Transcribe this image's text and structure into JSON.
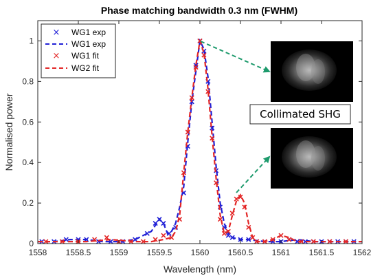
{
  "chart_data": {
    "type": "line",
    "title": "Phase matching bandwidth 0.3 nm (FWHM)",
    "xlabel": "Wavelength (nm)",
    "ylabel": "Normalised power",
    "xlim": [
      1558,
      1562
    ],
    "ylim": [
      0,
      1.1
    ],
    "xticks": [
      "1558",
      "1558.5",
      "1559",
      "1559.5",
      "1560",
      "1560.5",
      "1561",
      "1561.5",
      "1562"
    ],
    "yticks": [
      "0",
      "0.2",
      "0.4",
      "0.6",
      "0.8",
      "1"
    ],
    "grid": false,
    "legend_position": "top-left",
    "annotation_label": "Collimated SHG",
    "colors": {
      "blue": "#1f1fd6",
      "red": "#e32626",
      "arrow": "#1d9a6c"
    },
    "series": [
      {
        "name": "WG1 exp",
        "style": "markers",
        "marker": "x",
        "color": "#1f1fd6",
        "x": [
          1558.05,
          1558.2,
          1558.35,
          1558.5,
          1558.6,
          1558.75,
          1558.9,
          1559.05,
          1559.2,
          1559.35,
          1559.45,
          1559.5,
          1559.55,
          1559.62,
          1559.7,
          1559.8,
          1559.85,
          1559.9,
          1559.95,
          1560.0,
          1560.05,
          1560.1,
          1560.15,
          1560.2,
          1560.25,
          1560.3,
          1560.35,
          1560.4,
          1560.5,
          1560.6,
          1560.7,
          1560.8,
          1560.9,
          1561.0,
          1561.1,
          1561.2,
          1561.3,
          1561.4,
          1561.5,
          1561.6,
          1561.7,
          1561.8,
          1561.9
        ],
        "y": [
          0.01,
          0.01,
          0.02,
          0.02,
          0.02,
          0.01,
          0.01,
          0.01,
          0.02,
          0.05,
          0.1,
          0.12,
          0.1,
          0.05,
          0.08,
          0.25,
          0.48,
          0.7,
          0.88,
          1.0,
          0.95,
          0.8,
          0.57,
          0.36,
          0.18,
          0.08,
          0.04,
          0.03,
          0.02,
          0.02,
          0.01,
          0.01,
          0.01,
          0.01,
          0.02,
          0.01,
          0.01,
          0.01,
          0.01,
          0.01,
          0.01,
          0.01,
          0.01
        ]
      },
      {
        "name": "WG1 exp",
        "style": "dashed",
        "color": "#1f1fd6",
        "x": [
          1558.0,
          1558.2,
          1558.4,
          1558.6,
          1558.8,
          1559.0,
          1559.2,
          1559.3,
          1559.4,
          1559.5,
          1559.55,
          1559.6,
          1559.65,
          1559.7,
          1559.75,
          1559.8,
          1559.85,
          1559.9,
          1559.95,
          1560.0,
          1560.05,
          1560.1,
          1560.15,
          1560.2,
          1560.25,
          1560.3,
          1560.35,
          1560.4,
          1560.5,
          1560.6,
          1560.8,
          1561.0,
          1561.2,
          1561.4,
          1561.6,
          1561.8,
          1562.0
        ],
        "y": [
          0.01,
          0.01,
          0.02,
          0.02,
          0.01,
          0.01,
          0.02,
          0.04,
          0.06,
          0.12,
          0.1,
          0.05,
          0.06,
          0.1,
          0.18,
          0.28,
          0.5,
          0.7,
          0.85,
          1.0,
          0.96,
          0.82,
          0.6,
          0.38,
          0.2,
          0.1,
          0.05,
          0.03,
          0.02,
          0.02,
          0.01,
          0.01,
          0.02,
          0.01,
          0.01,
          0.01,
          0.01
        ]
      },
      {
        "name": "WG1 fit",
        "style": "markers",
        "marker": "x",
        "color": "#e32626",
        "x": [
          1558.1,
          1558.3,
          1558.5,
          1558.7,
          1558.85,
          1559.0,
          1559.15,
          1559.3,
          1559.45,
          1559.55,
          1559.65,
          1559.75,
          1559.8,
          1559.85,
          1559.9,
          1559.95,
          1560.0,
          1560.05,
          1560.1,
          1560.15,
          1560.2,
          1560.25,
          1560.3,
          1560.35,
          1560.4,
          1560.45,
          1560.5,
          1560.55,
          1560.6,
          1560.65,
          1560.7,
          1560.8,
          1560.9,
          1561.0,
          1561.1,
          1561.25,
          1561.4,
          1561.6,
          1561.8
        ],
        "y": [
          0.01,
          0.01,
          0.01,
          0.02,
          0.03,
          0.01,
          0.01,
          0.01,
          0.02,
          0.04,
          0.03,
          0.12,
          0.35,
          0.55,
          0.72,
          0.87,
          1.0,
          0.93,
          0.75,
          0.52,
          0.3,
          0.12,
          0.05,
          0.06,
          0.15,
          0.22,
          0.23,
          0.18,
          0.08,
          0.03,
          0.01,
          0.01,
          0.02,
          0.04,
          0.02,
          0.01,
          0.01,
          0.01,
          0.01
        ]
      },
      {
        "name": "WG2 fit",
        "style": "dashed",
        "color": "#e32626",
        "x": [
          1558.0,
          1558.3,
          1558.6,
          1558.9,
          1559.2,
          1559.4,
          1559.55,
          1559.65,
          1559.7,
          1559.75,
          1559.8,
          1559.85,
          1559.9,
          1559.95,
          1560.0,
          1560.05,
          1560.1,
          1560.15,
          1560.2,
          1560.25,
          1560.3,
          1560.35,
          1560.4,
          1560.45,
          1560.5,
          1560.55,
          1560.6,
          1560.65,
          1560.7,
          1560.8,
          1560.9,
          1561.0,
          1561.1,
          1561.2,
          1561.5,
          1562.0
        ],
        "y": [
          0.01,
          0.01,
          0.01,
          0.02,
          0.01,
          0.01,
          0.02,
          0.03,
          0.06,
          0.14,
          0.35,
          0.55,
          0.72,
          0.88,
          1.0,
          0.94,
          0.76,
          0.53,
          0.32,
          0.14,
          0.05,
          0.06,
          0.14,
          0.21,
          0.24,
          0.2,
          0.1,
          0.03,
          0.01,
          0.01,
          0.02,
          0.04,
          0.03,
          0.01,
          0.01,
          0.01
        ]
      }
    ]
  }
}
